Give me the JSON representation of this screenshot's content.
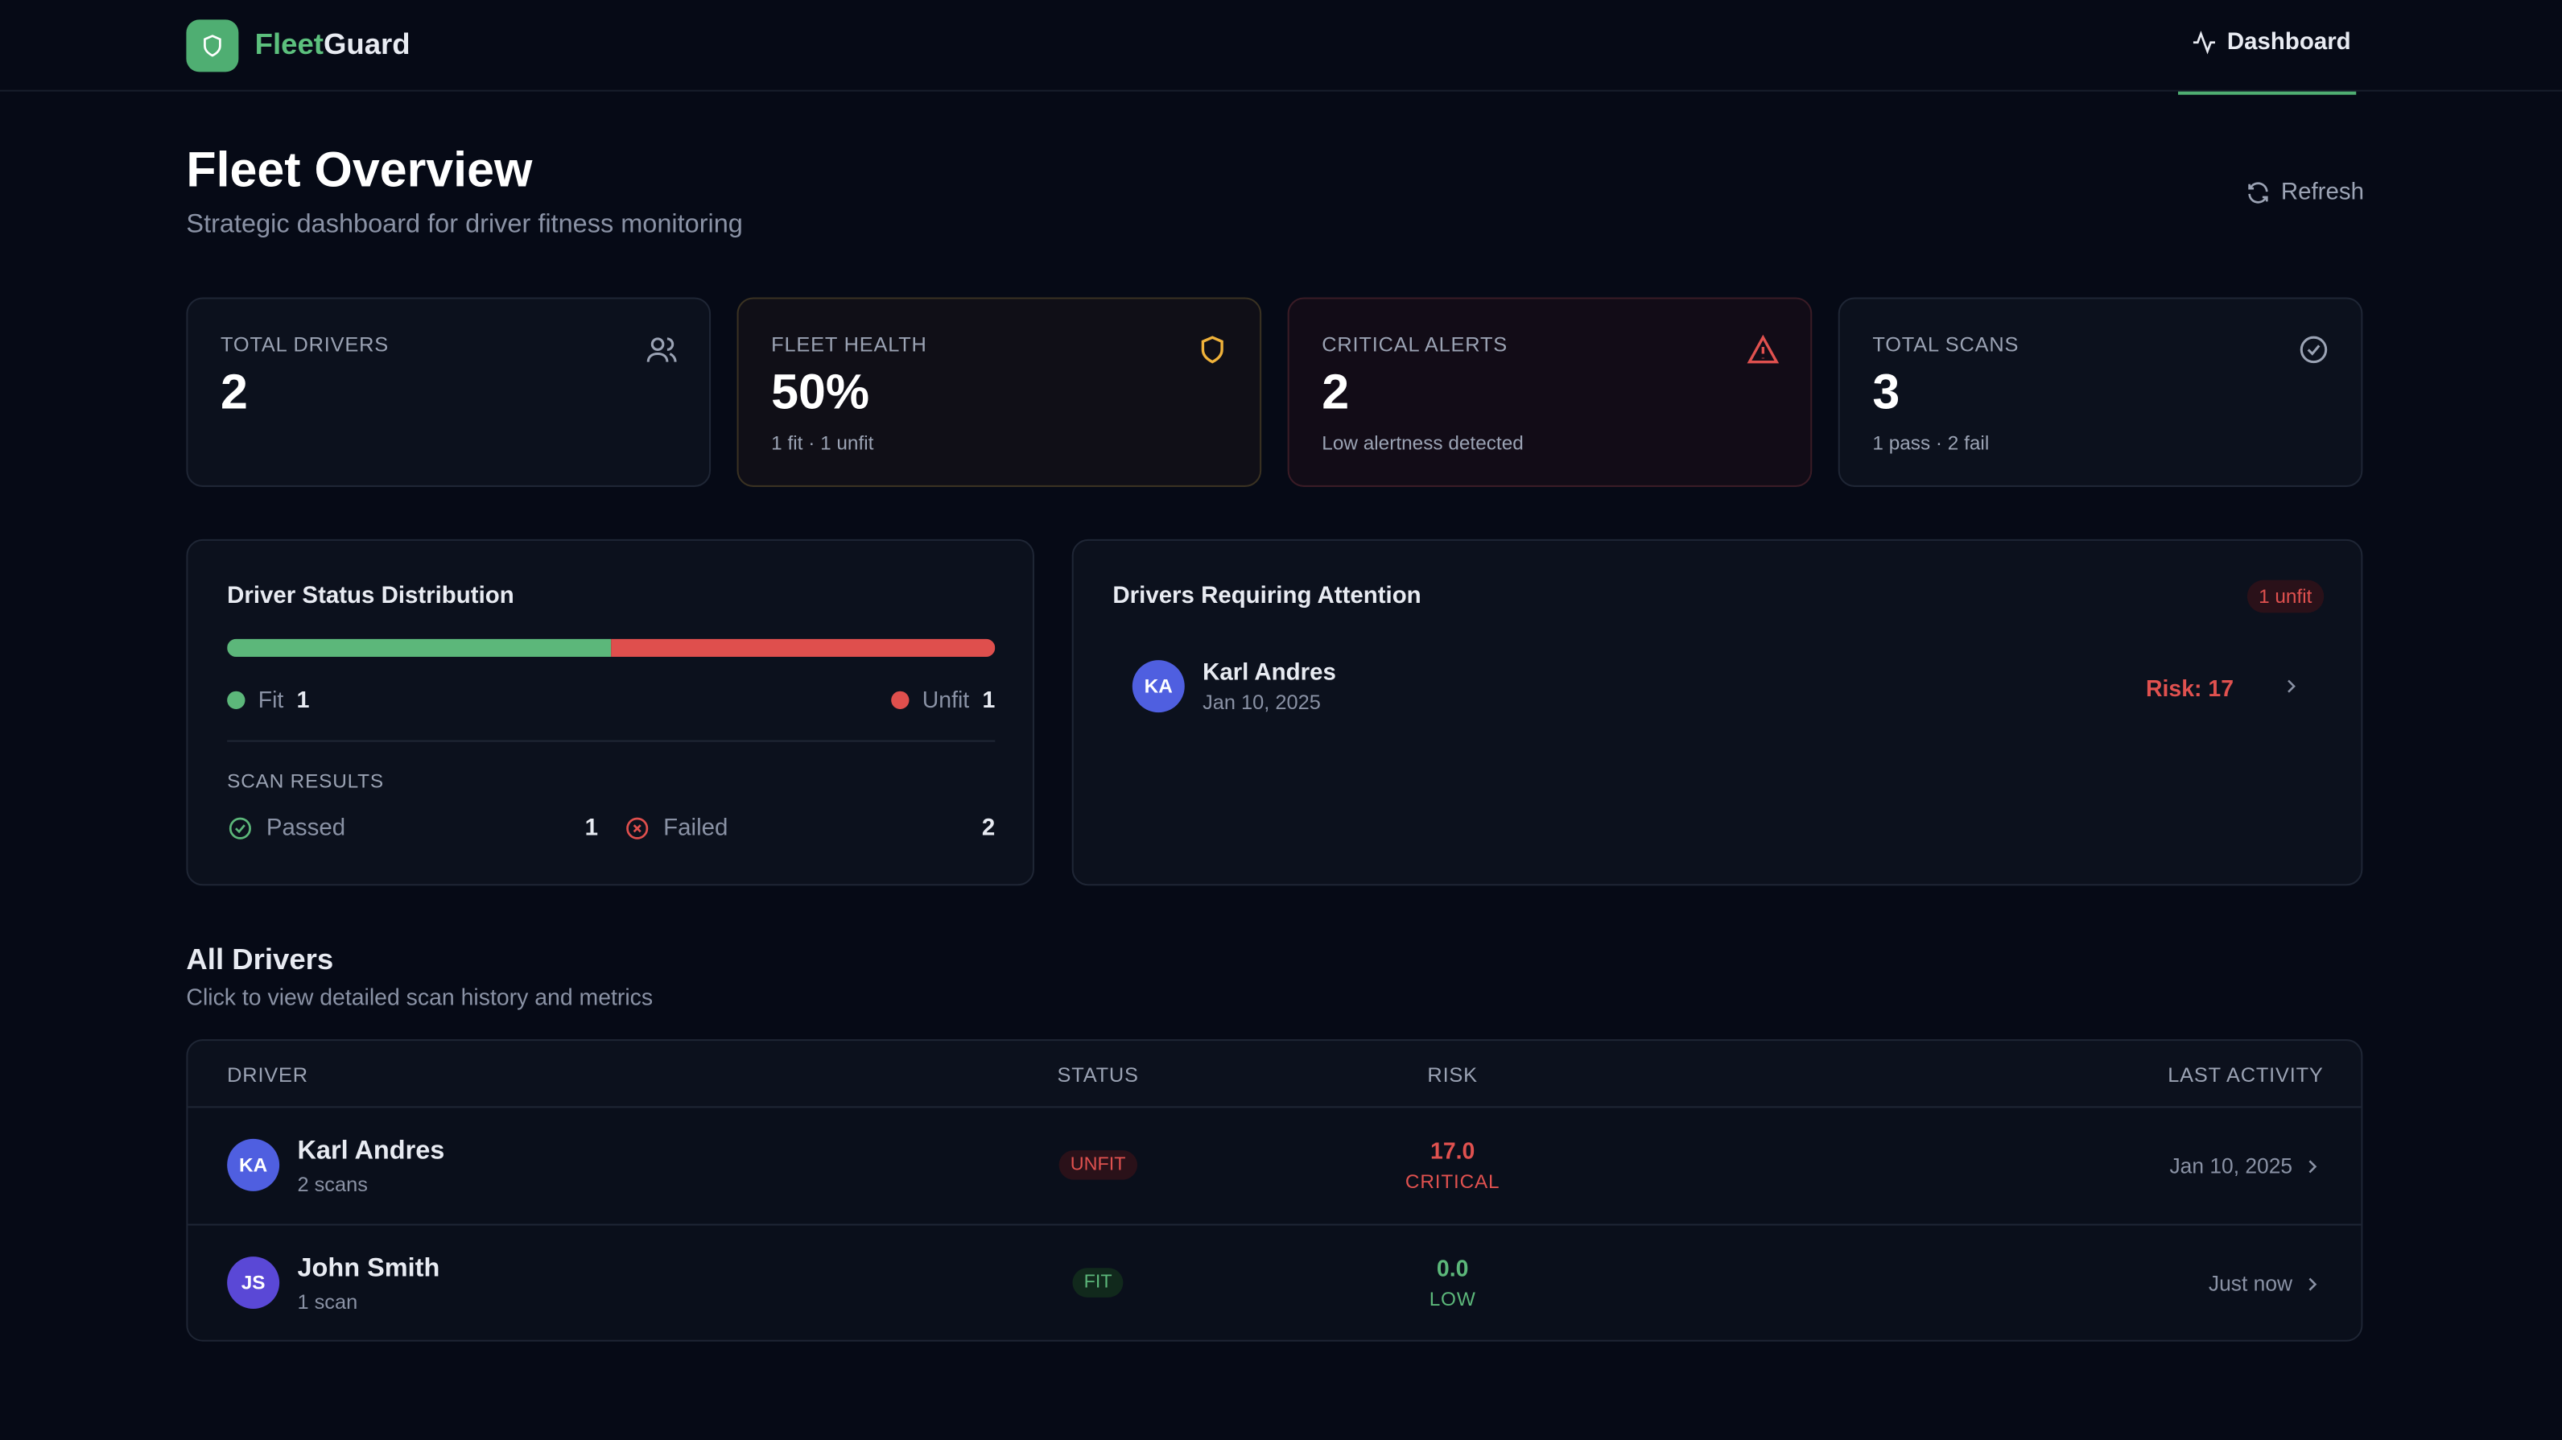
{
  "header": {
    "brand_a": "Fleet",
    "brand_b": "Guard",
    "nav": "Dashboard"
  },
  "page": {
    "title": "Fleet Overview",
    "subtitle": "Strategic dashboard for driver fitness monitoring",
    "refresh": "Refresh"
  },
  "stats": [
    {
      "label": "TOTAL DRIVERS",
      "value": "2"
    },
    {
      "label": "FLEET HEALTH",
      "value": "50%",
      "note": "1 fit · 1 unfit"
    },
    {
      "label": "CRITICAL ALERTS",
      "value": "2",
      "note": "Low alertness detected"
    },
    {
      "label": "TOTAL SCANS",
      "value": "3",
      "note": "1 pass · 2 fail"
    }
  ],
  "distribution": {
    "title": "Driver Status Distribution",
    "fit_label": "Fit",
    "fit": 1,
    "unfit_label": "Unfit",
    "unfit": 1,
    "scan_title": "SCAN RESULTS",
    "passed_label": "Passed",
    "passed": 1,
    "failed_label": "Failed",
    "failed": 2
  },
  "attention": {
    "title": "Drivers Requiring Attention",
    "badge": "1 unfit",
    "items": [
      {
        "initials": "KA",
        "name": "Karl Andres",
        "date": "Jan 10, 2025",
        "risk": "Risk: 17"
      }
    ]
  },
  "drivers": {
    "title": "All Drivers",
    "subtitle": "Click to view detailed scan history and metrics",
    "columns": [
      "DRIVER",
      "STATUS",
      "RISK",
      "LAST ACTIVITY"
    ],
    "rows": [
      {
        "initials": "KA",
        "name": "Karl Andres",
        "scans": "2 scans",
        "status": "UNFIT",
        "risk": "17.0",
        "level": "CRITICAL",
        "last": "Jan 10, 2025"
      },
      {
        "initials": "JS",
        "name": "John Smith",
        "scans": "1 scan",
        "status": "FIT",
        "risk": "0.0",
        "level": "LOW",
        "last": "Just now"
      }
    ]
  }
}
